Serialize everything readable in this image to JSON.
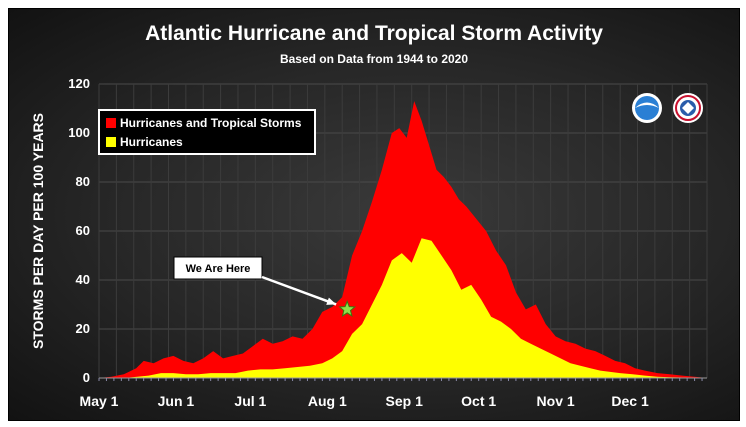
{
  "chart_data": {
    "type": "area",
    "title": "Atlantic Hurricane and Tropical Storm Activity",
    "subtitle": "Based on Data from 1944 to 2020",
    "xlabel": "",
    "ylabel": "STORMS PER DAY PER 100 YEARS",
    "ylim": [
      0,
      120
    ],
    "yticks": [
      0,
      20,
      40,
      60,
      80,
      100,
      120
    ],
    "xlim": [
      0,
      245
    ],
    "xticks": [
      {
        "day": 0,
        "label": "May 1"
      },
      {
        "day": 31,
        "label": "Jun 1"
      },
      {
        "day": 61,
        "label": "Jul 1"
      },
      {
        "day": 92,
        "label": "Aug 1"
      },
      {
        "day": 123,
        "label": "Sep 1"
      },
      {
        "day": 153,
        "label": "Oct 1"
      },
      {
        "day": 184,
        "label": "Nov 1"
      },
      {
        "day": 214,
        "label": "Dec 1"
      }
    ],
    "grid": true,
    "legend_position": "top-left",
    "series": [
      {
        "name": "Hurricanes and Tropical Storms",
        "color": "#ff0000",
        "x": [
          0,
          5,
          10,
          15,
          18,
          22,
          26,
          30,
          34,
          38,
          42,
          46,
          50,
          54,
          58,
          62,
          66,
          70,
          74,
          78,
          82,
          86,
          90,
          94,
          98,
          102,
          106,
          110,
          114,
          118,
          121,
          124,
          127,
          130,
          133,
          136,
          139,
          142,
          145,
          148,
          152,
          156,
          160,
          164,
          168,
          172,
          176,
          180,
          184,
          188,
          192,
          196,
          200,
          204,
          208,
          212,
          216,
          220,
          225,
          230,
          235,
          240,
          245
        ],
        "values": [
          0,
          0.5,
          1.5,
          4,
          7,
          6,
          8,
          9,
          7,
          6,
          8,
          11,
          8,
          9,
          10,
          13,
          16,
          14,
          15,
          17,
          16,
          20,
          27,
          29,
          33,
          50,
          60,
          72,
          85,
          100,
          102,
          98,
          113,
          105,
          95,
          85,
          82,
          78,
          73,
          70,
          65,
          60,
          52,
          46,
          35,
          28,
          30,
          22,
          17,
          15,
          14,
          12,
          11,
          9,
          7,
          6,
          4,
          3,
          2,
          1.5,
          1,
          0.5,
          0
        ]
      },
      {
        "name": "Hurricanes",
        "color": "#ffff00",
        "x": [
          0,
          10,
          20,
          25,
          30,
          35,
          40,
          45,
          50,
          55,
          60,
          65,
          70,
          75,
          80,
          85,
          90,
          94,
          98,
          102,
          106,
          110,
          114,
          118,
          122,
          126,
          130,
          134,
          138,
          142,
          146,
          150,
          154,
          158,
          162,
          166,
          170,
          174,
          178,
          182,
          186,
          190,
          194,
          198,
          202,
          206,
          210,
          215,
          220,
          225,
          230,
          235,
          240,
          245
        ],
        "values": [
          0,
          0,
          1,
          2,
          2,
          1.5,
          1.5,
          2,
          2,
          2,
          3,
          3.5,
          3.5,
          4,
          4.5,
          5,
          6,
          8,
          11,
          18,
          22,
          30,
          38,
          48,
          51,
          47,
          57,
          56,
          50,
          44,
          36,
          38,
          32,
          25,
          23,
          20,
          16,
          14,
          12,
          10,
          8,
          6,
          5,
          4,
          3,
          2.5,
          2,
          1.5,
          1,
          0.5,
          0.3,
          0.2,
          0.1,
          0
        ]
      }
    ],
    "annotations": [
      {
        "text": "We Are Here",
        "x": 100,
        "y": 28,
        "marker": "star"
      }
    ]
  }
}
